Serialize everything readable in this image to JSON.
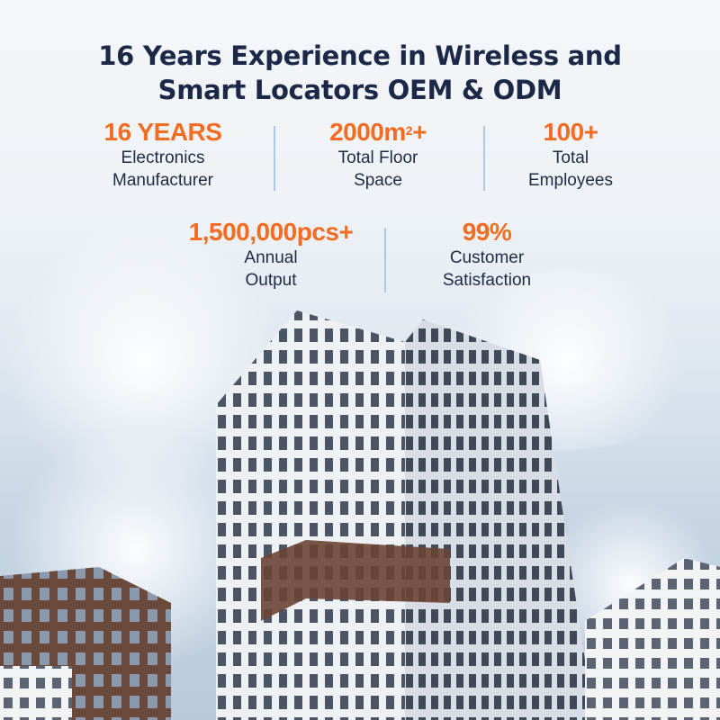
{
  "headline": {
    "line1": "16 Years Experience in Wireless and",
    "line2": "Smart Locators OEM & ODM"
  },
  "stats": [
    {
      "value": "16 YEARS",
      "label_line1": "Electronics",
      "label_line2": "Manufacturer"
    },
    {
      "value": "2000m",
      "value_sup": "2",
      "value_suffix": "+",
      "label_line1": "Total Floor",
      "label_line2": "Space"
    },
    {
      "value": "100+",
      "label_line1": "Total",
      "label_line2": "Employees"
    },
    {
      "value": "1,500,000pcs+",
      "label_line1": "Annual",
      "label_line2": "Output"
    },
    {
      "value": "99%",
      "label_line1": "Customer",
      "label_line2": "Satisfaction"
    }
  ],
  "colors": {
    "accent": "#f26c22",
    "heading": "#1c2848",
    "divider": "#a9c8ea"
  }
}
